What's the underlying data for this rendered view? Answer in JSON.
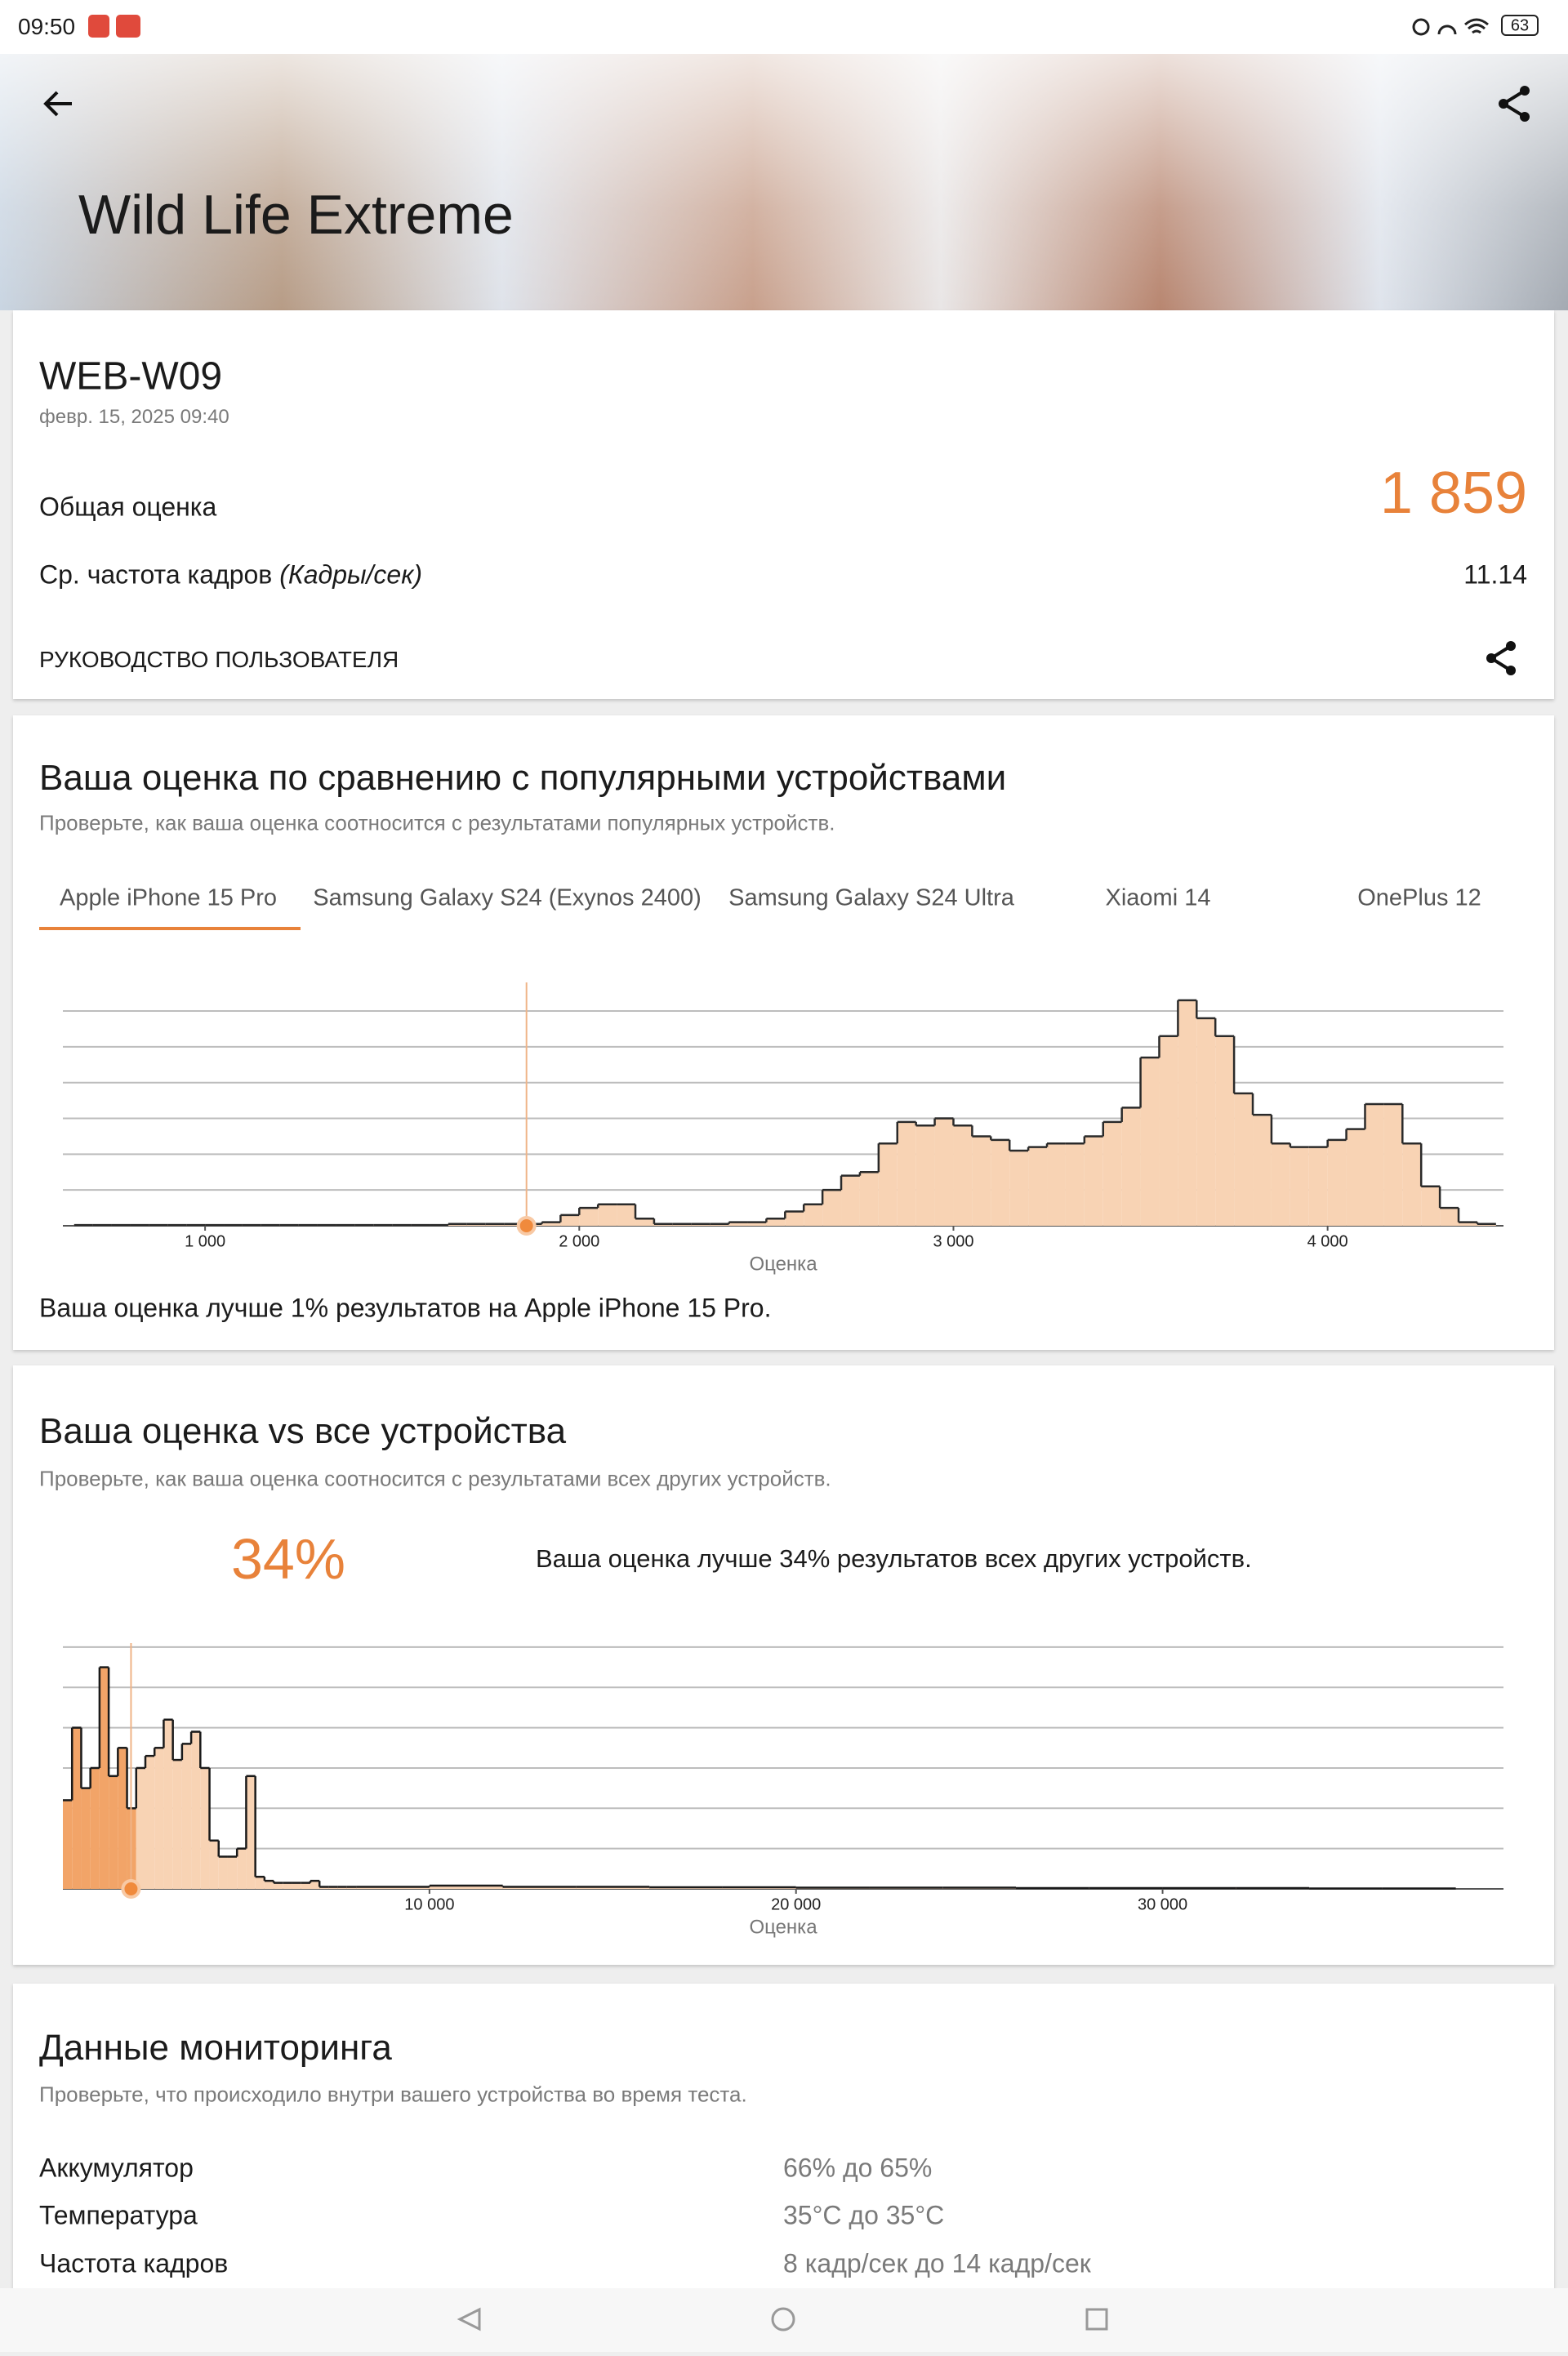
{
  "status_bar": {
    "time": "09:50",
    "battery": "63"
  },
  "header": {
    "title": "Wild Life Extreme"
  },
  "result": {
    "device": "WEB-W09",
    "date": "февр. 15, 2025 09:40",
    "score_label": "Общая оценка",
    "score": {
      "value": 1859,
      "label": "1 859"
    },
    "fps_label": "Ср. частота кадров",
    "fps_unit": "(Кадры/сек)",
    "fps": "11.14",
    "guide": "РУКОВОДСТВО ПОЛЬЗОВАТЕЛЯ"
  },
  "comparison": {
    "title": "Ваша оценка по сравнению с популярными устройствами",
    "subtitle": "Проверьте, как ваша оценка соотносится с результатами популярных устройств.",
    "tabs": [
      "Apple iPhone 15 Pro",
      "Samsung Galaxy S24 (Exynos 2400)",
      "Samsung Galaxy S24 Ultra",
      "Xiaomi 14",
      "OnePlus 12"
    ],
    "note": "Ваша оценка лучше 1% результатов на Apple iPhone 15 Pro."
  },
  "all_devices": {
    "title": "Ваша оценка vs все устройства",
    "subtitle": "Проверьте, как ваша оценка соотносится с результатами всех других устройств.",
    "percent": "34%",
    "note": "Ваша оценка лучше 34% результатов всех других устройств."
  },
  "monitoring": {
    "title": "Данные мониторинга",
    "subtitle": "Проверьте, что происходило внутри вашего устройства во время теста.",
    "rows": [
      [
        "Аккумулятор",
        "66% до 65%"
      ],
      [
        "Температура",
        "35°C до 35°C"
      ],
      [
        "Частота кадров",
        "8 кадр/сек до 14 кадр/сек"
      ]
    ]
  },
  "chart_data": [
    {
      "type": "histogram",
      "xlabel": "Оценка",
      "bins": [
        650,
        700,
        750,
        800,
        850,
        900,
        950,
        1000,
        1050,
        1100,
        1150,
        1200,
        1250,
        1300,
        1350,
        1400,
        1450,
        1500,
        1550,
        1600,
        1650,
        1700,
        1750,
        1800,
        1850,
        1900,
        1950,
        2000,
        2050,
        2100,
        2150,
        2200,
        2250,
        2300,
        2350,
        2400,
        2450,
        2500,
        2550,
        2600,
        2650,
        2700,
        2750,
        2800,
        2850,
        2900,
        2950,
        3000,
        3050,
        3100,
        3150,
        3200,
        3250,
        3300,
        3350,
        3400,
        3450,
        3500,
        3550,
        3600,
        3650,
        3700,
        3750,
        3800,
        3850,
        3900,
        3950,
        4000,
        4050,
        4100,
        4150,
        4200,
        4250,
        4300,
        4350,
        4400,
        4450
      ],
      "values": [
        0.02,
        0.02,
        0.02,
        0.02,
        0.02,
        0.02,
        0.02,
        0.02,
        0.02,
        0.02,
        0.02,
        0.02,
        0.02,
        0.02,
        0.02,
        0.02,
        0.02,
        0.02,
        0.02,
        0.02,
        0.05,
        0.05,
        0.05,
        0.05,
        0.05,
        0.1,
        0.3,
        0.5,
        0.6,
        0.6,
        0.2,
        0.05,
        0.05,
        0.05,
        0.05,
        0.1,
        0.1,
        0.2,
        0.4,
        0.6,
        1.0,
        1.4,
        1.5,
        2.3,
        2.9,
        2.8,
        3.0,
        2.8,
        2.5,
        2.4,
        2.1,
        2.2,
        2.3,
        2.3,
        2.5,
        2.9,
        3.3,
        4.7,
        5.3,
        6.3,
        5.8,
        5.3,
        3.7,
        3.1,
        2.3,
        2.2,
        2.2,
        2.4,
        2.7,
        3.4,
        3.4,
        2.3,
        1.1,
        0.5,
        0.1,
        0.05
      ],
      "xlim": [
        620,
        4470
      ],
      "xticks": [
        {
          "value": 1000,
          "label": "1 000"
        },
        {
          "value": 2000,
          "label": "2 000"
        },
        {
          "value": 3000,
          "label": "3 000"
        },
        {
          "value": 4000,
          "label": "4 000"
        }
      ],
      "ylim": [
        0,
        6.8
      ],
      "yticks": [
        0,
        1,
        2,
        3,
        4,
        5,
        6
      ],
      "grid": true,
      "color": "#f8d3b4",
      "line_color": "#2a2a2a"
    },
    {
      "type": "histogram",
      "xlabel": "Оценка",
      "bins": [
        0,
        250,
        500,
        750,
        1000,
        1250,
        1500,
        1750,
        2000,
        2250,
        2500,
        2750,
        3000,
        3250,
        3500,
        3750,
        4000,
        4250,
        4500,
        4750,
        5000,
        5250,
        5500,
        5750,
        6000,
        6250,
        6500,
        6750,
        7000,
        7250,
        7500,
        7750,
        8000,
        10000,
        12000,
        14000,
        16000,
        18000,
        20000,
        22000,
        24000,
        26000,
        28000,
        30000,
        32000,
        34000,
        36000,
        38000
      ],
      "values": [
        2.2,
        4.0,
        2.5,
        3.0,
        5.5,
        2.8,
        3.5,
        2.0,
        3.0,
        3.3,
        3.5,
        4.2,
        3.2,
        3.6,
        3.9,
        3.0,
        1.2,
        0.8,
        0.8,
        1.0,
        2.8,
        0.3,
        0.2,
        0.15,
        0.15,
        0.15,
        0.15,
        0.2,
        0.05,
        0.05,
        0.05,
        0.05,
        0.05,
        0.08,
        0.05,
        0.05,
        0.04,
        0.04,
        0.03,
        0.03,
        0.03,
        0.02,
        0.02,
        0.02,
        0.02,
        0.01,
        0.01
      ],
      "xlim": [
        0,
        39300
      ],
      "xticks": [
        {
          "value": 10000,
          "label": "10 000"
        },
        {
          "value": 20000,
          "label": "20 000"
        },
        {
          "value": 30000,
          "label": "30 000"
        }
      ],
      "ylim": [
        0,
        6.1
      ],
      "yticks": [
        0,
        1,
        2,
        3,
        4,
        5,
        6
      ],
      "grid": true,
      "color": "#f8d3b4",
      "highlight_color": "#f2a468",
      "line_color": "#1a1a1a"
    }
  ]
}
